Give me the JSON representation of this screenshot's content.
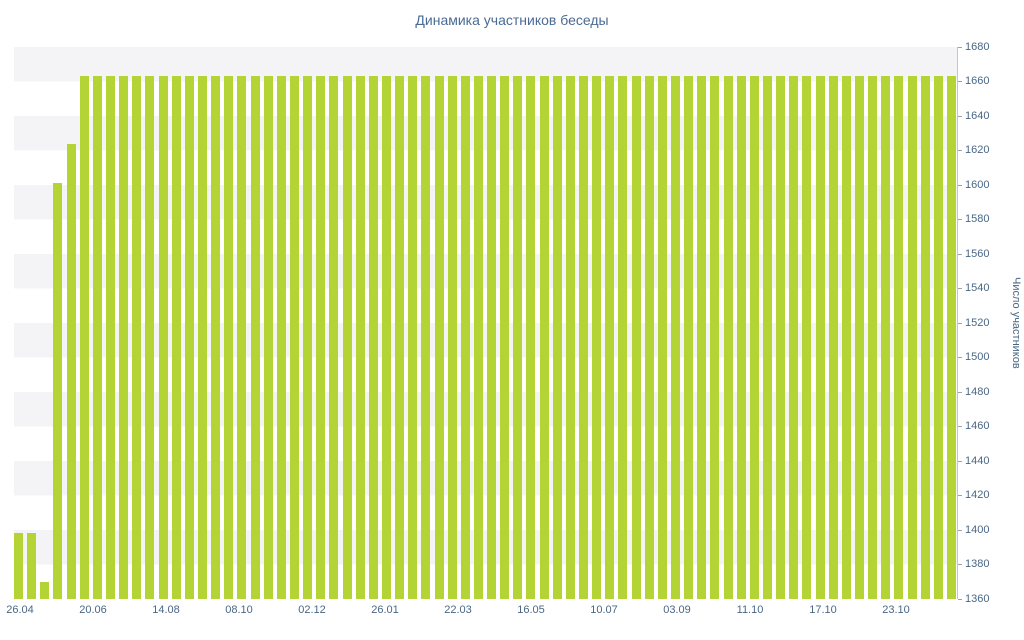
{
  "chart_data": {
    "type": "bar",
    "title": "Динамика участников беседы",
    "xlabel": "",
    "ylabel": "Число участников",
    "ylim": [
      1360,
      1680
    ],
    "y_tick_step": 20,
    "grid": "striped-horizontal-bands",
    "legend": "none",
    "bar_color": "#b4d435",
    "stripe_color": "#f4f4f6",
    "title_color": "#4a6b94",
    "axis_text_color": "#4a6785",
    "axis_line_color": "#c2c6cb",
    "x_tick_labels": [
      "26.04",
      "20.06",
      "14.08",
      "08.10",
      "02.12",
      "26.01",
      "22.03",
      "16.05",
      "10.07",
      "03.09",
      "11.10",
      "17.10",
      "23.10"
    ],
    "values": [
      1398,
      1398,
      1370,
      1601,
      1624,
      1663,
      1663,
      1663,
      1663,
      1663,
      1663,
      1663,
      1663,
      1663,
      1663,
      1663,
      1663,
      1663,
      1663,
      1663,
      1663,
      1663,
      1663,
      1663,
      1663,
      1663,
      1663,
      1663,
      1663,
      1663,
      1663,
      1663,
      1663,
      1663,
      1663,
      1663,
      1663,
      1663,
      1663,
      1663,
      1663,
      1663,
      1663,
      1663,
      1663,
      1663,
      1663,
      1663,
      1663,
      1663,
      1663,
      1663,
      1663,
      1663,
      1663,
      1663,
      1663,
      1663,
      1663,
      1663,
      1663,
      1663,
      1663,
      1663,
      1663,
      1663,
      1663,
      1663,
      1663,
      1663,
      1663,
      1663
    ]
  }
}
